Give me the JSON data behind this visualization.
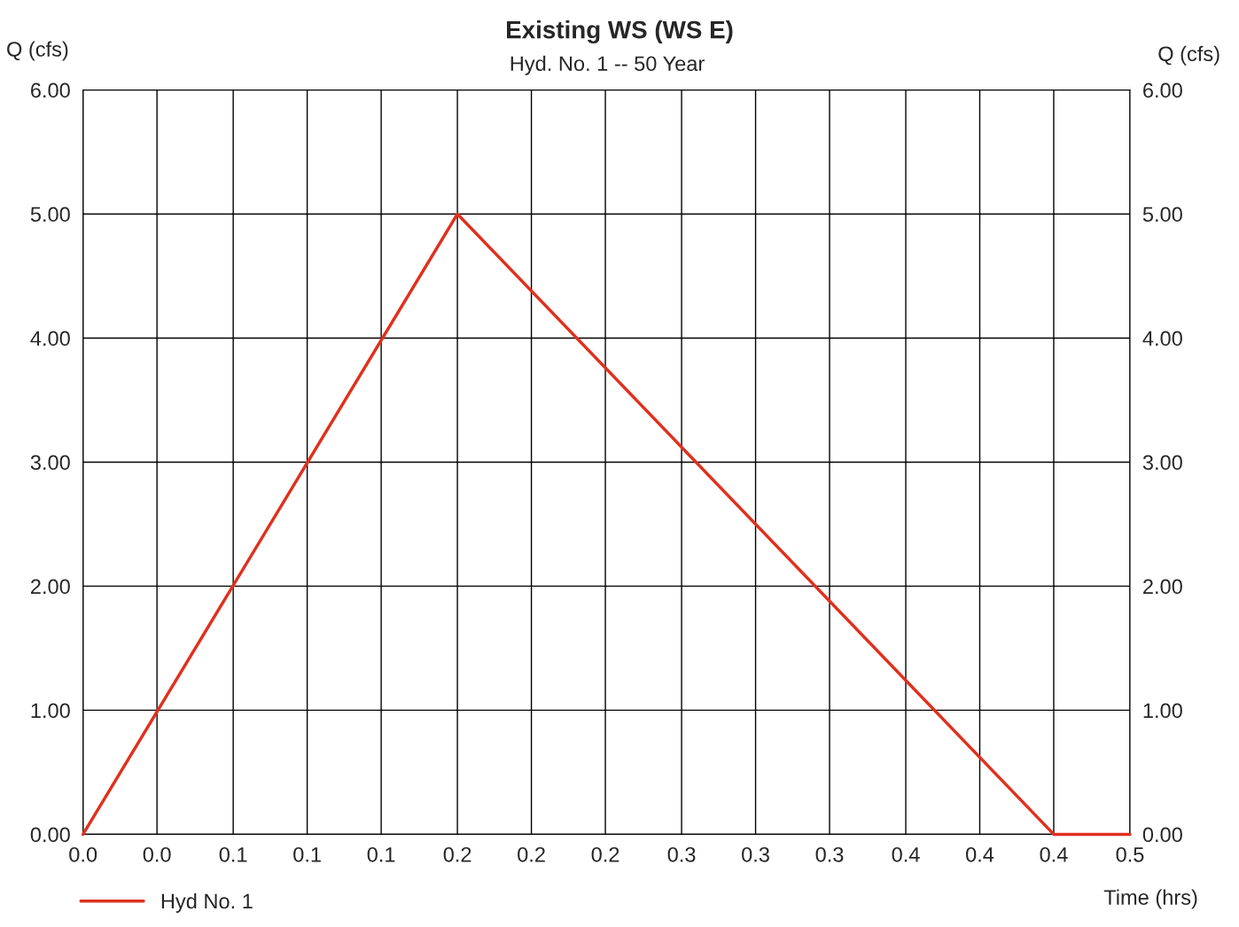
{
  "chart_data": {
    "type": "line",
    "title": "Existing WS (WS E)",
    "subtitle": "Hyd. No. 1 -- 50 Year",
    "xlabel": "Time (hrs)",
    "ylabel": "Q (cfs)",
    "y2label": "Q (cfs)",
    "x": [
      0,
      0.167,
      0.433,
      0.467
    ],
    "series": [
      {
        "name": "Hyd No. 1",
        "color": "#e0301e",
        "values": [
          0,
          5,
          0,
          0
        ]
      }
    ],
    "xlim": [
      0,
      0.467
    ],
    "xticks": [
      {
        "value": 0,
        "label": "0.0"
      },
      {
        "value": 0.033,
        "label": "0.0"
      },
      {
        "value": 0.067,
        "label": "0.1"
      },
      {
        "value": 0.1,
        "label": "0.1"
      },
      {
        "value": 0.133,
        "label": "0.1"
      },
      {
        "value": 0.167,
        "label": "0.2"
      },
      {
        "value": 0.2,
        "label": "0.2"
      },
      {
        "value": 0.233,
        "label": "0.2"
      },
      {
        "value": 0.267,
        "label": "0.3"
      },
      {
        "value": 0.3,
        "label": "0.3"
      },
      {
        "value": 0.333,
        "label": "0.3"
      },
      {
        "value": 0.367,
        "label": "0.4"
      },
      {
        "value": 0.4,
        "label": "0.4"
      },
      {
        "value": 0.433,
        "label": "0.4"
      },
      {
        "value": 0.467,
        "label": "0.5"
      }
    ],
    "ylim": [
      0,
      6
    ],
    "yticks": [
      {
        "value": 0,
        "label": "0.00"
      },
      {
        "value": 1,
        "label": "1.00"
      },
      {
        "value": 2,
        "label": "2.00"
      },
      {
        "value": 3,
        "label": "3.00"
      },
      {
        "value": 4,
        "label": "4.00"
      },
      {
        "value": 5,
        "label": "5.00"
      },
      {
        "value": 6,
        "label": "6.00"
      }
    ],
    "y2lim": [
      0,
      6
    ],
    "y2ticks": [
      {
        "value": 0,
        "label": "0.00"
      },
      {
        "value": 1,
        "label": "1.00"
      },
      {
        "value": 2,
        "label": "2.00"
      },
      {
        "value": 3,
        "label": "3.00"
      },
      {
        "value": 4,
        "label": "4.00"
      },
      {
        "value": 5,
        "label": "5.00"
      },
      {
        "value": 6,
        "label": "6.00"
      }
    ],
    "grid": true,
    "legend": "bottom left",
    "marker": "none",
    "line_style": "solid"
  }
}
